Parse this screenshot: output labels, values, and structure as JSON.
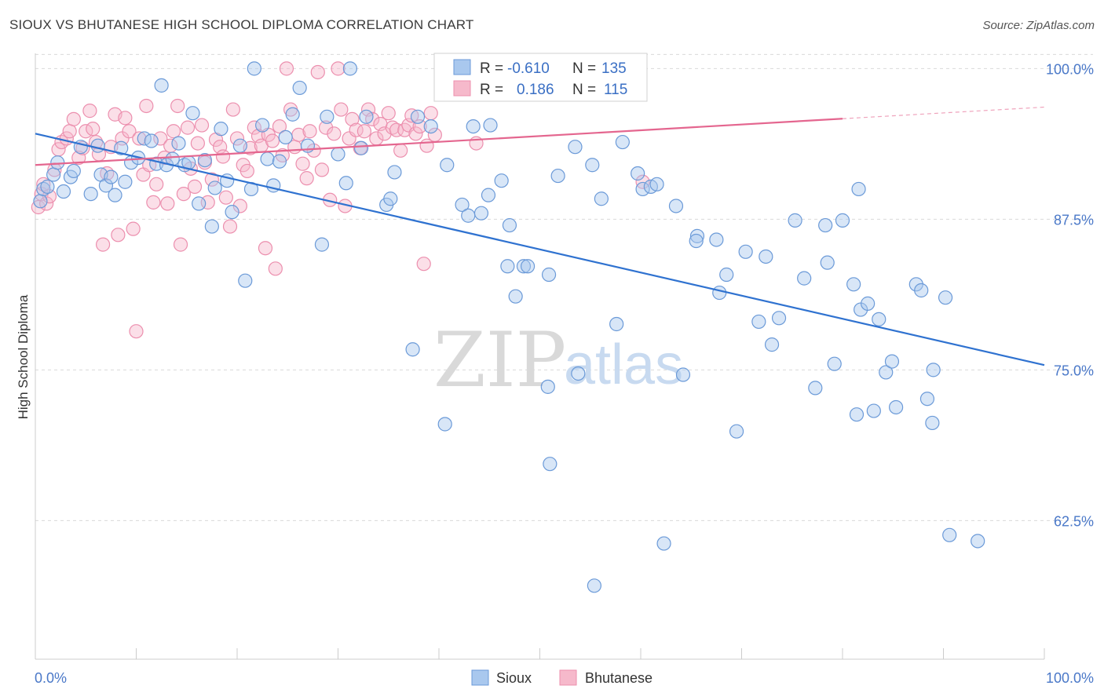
{
  "header": {
    "title": "SIOUX VS BHUTANESE HIGH SCHOOL DIPLOMA CORRELATION CHART",
    "source": "Source: ZipAtlas.com"
  },
  "watermark": {
    "zip": "ZIP",
    "atlas": "atlas"
  },
  "stats": {
    "sioux": {
      "r_label": "R =",
      "r_value": "-0.610",
      "n_label": "N =",
      "n_value": "135"
    },
    "bhutanese": {
      "r_label": "R =",
      "r_value": "0.186",
      "n_label": "N =",
      "n_value": "115"
    }
  },
  "colors": {
    "sioux_fill": "#a9c8ee",
    "sioux_stroke": "#6b9ad8",
    "sioux_line": "#2f72d0",
    "bhutanese_fill": "#f6b9cb",
    "bhutanese_stroke": "#ec8fae",
    "bhutanese_line": "#e4668f",
    "grid": "#d9d9d9",
    "axis_text": "#4a78c8"
  },
  "chart_data": {
    "type": "scatter",
    "title": "SIOUX VS BHUTANESE HIGH SCHOOL DIPLOMA CORRELATION CHART",
    "xlabel": "",
    "ylabel": "High School Diploma",
    "xlim": [
      0,
      100
    ],
    "ylim": [
      51.0,
      101.0
    ],
    "x_tick_labels": [
      "0.0%",
      "100.0%"
    ],
    "y_ticks": [
      62.5,
      75.0,
      87.5,
      100.0
    ],
    "y_tick_labels": [
      "62.5%",
      "75.0%",
      "87.5%",
      "100.0%"
    ],
    "grid": true,
    "legend_position": "bottom-center",
    "series": [
      {
        "name": "Sioux",
        "r": -0.61,
        "n": 135,
        "trend": {
          "x": [
            0,
            100
          ],
          "y": [
            94.6,
            75.4
          ]
        },
        "points": [
          [
            0.5,
            89.0
          ],
          [
            0.8,
            90.0
          ],
          [
            1.2,
            90.2
          ],
          [
            1.8,
            91.2
          ],
          [
            2.2,
            92.2
          ],
          [
            2.8,
            89.8
          ],
          [
            3.5,
            91.0
          ],
          [
            3.8,
            91.5
          ],
          [
            4.5,
            93.5
          ],
          [
            5.5,
            89.6
          ],
          [
            6.2,
            93.6
          ],
          [
            6.5,
            91.2
          ],
          [
            7.0,
            90.3
          ],
          [
            7.5,
            91.0
          ],
          [
            7.9,
            89.5
          ],
          [
            8.5,
            93.4
          ],
          [
            8.9,
            90.6
          ],
          [
            9.5,
            92.2
          ],
          [
            10.2,
            92.6
          ],
          [
            10.8,
            94.2
          ],
          [
            11.5,
            94.0
          ],
          [
            12.0,
            92.1
          ],
          [
            12.5,
            98.6
          ],
          [
            13.0,
            92.0
          ],
          [
            13.6,
            92.5
          ],
          [
            14.2,
            93.8
          ],
          [
            14.8,
            92.0
          ],
          [
            15.2,
            92.2
          ],
          [
            15.6,
            96.3
          ],
          [
            16.2,
            88.8
          ],
          [
            16.8,
            92.4
          ],
          [
            17.5,
            86.9
          ],
          [
            17.8,
            90.1
          ],
          [
            18.4,
            95.0
          ],
          [
            19.0,
            90.7
          ],
          [
            19.5,
            88.1
          ],
          [
            20.3,
            93.6
          ],
          [
            20.8,
            82.4
          ],
          [
            21.4,
            90.0
          ],
          [
            21.7,
            100.0
          ],
          [
            22.5,
            95.3
          ],
          [
            23.0,
            92.5
          ],
          [
            23.6,
            90.3
          ],
          [
            24.2,
            92.3
          ],
          [
            24.8,
            94.3
          ],
          [
            25.5,
            96.2
          ],
          [
            26.2,
            98.4
          ],
          [
            27.0,
            93.6
          ],
          [
            28.4,
            85.4
          ],
          [
            28.9,
            96.0
          ],
          [
            30.0,
            92.9
          ],
          [
            30.8,
            90.5
          ],
          [
            31.2,
            100.0
          ],
          [
            32.3,
            93.4
          ],
          [
            32.8,
            96.0
          ],
          [
            34.8,
            88.7
          ],
          [
            35.2,
            89.2
          ],
          [
            35.6,
            91.4
          ],
          [
            37.4,
            76.7
          ],
          [
            37.9,
            96.0
          ],
          [
            39.2,
            95.2
          ],
          [
            40.6,
            70.5
          ],
          [
            40.8,
            92.0
          ],
          [
            42.3,
            88.7
          ],
          [
            42.9,
            87.8
          ],
          [
            43.4,
            95.2
          ],
          [
            44.2,
            88.0
          ],
          [
            44.9,
            89.5
          ],
          [
            45.1,
            95.3
          ],
          [
            46.2,
            90.7
          ],
          [
            46.8,
            83.6
          ],
          [
            47.0,
            87.0
          ],
          [
            47.6,
            81.1
          ],
          [
            48.4,
            83.6
          ],
          [
            48.8,
            83.6
          ],
          [
            50.8,
            73.6
          ],
          [
            50.9,
            82.9
          ],
          [
            51.0,
            67.2
          ],
          [
            51.8,
            91.1
          ],
          [
            53.8,
            74.7
          ],
          [
            53.5,
            93.5
          ],
          [
            55.2,
            92.0
          ],
          [
            55.4,
            57.1
          ],
          [
            56.1,
            89.2
          ],
          [
            57.6,
            78.8
          ],
          [
            58.2,
            93.9
          ],
          [
            59.7,
            91.3
          ],
          [
            60.2,
            90.0
          ],
          [
            61.0,
            90.2
          ],
          [
            61.6,
            90.4
          ],
          [
            62.3,
            60.6
          ],
          [
            63.5,
            88.6
          ],
          [
            64.2,
            74.6
          ],
          [
            65.6,
            86.1
          ],
          [
            65.5,
            85.7
          ],
          [
            67.5,
            85.8
          ],
          [
            67.8,
            81.4
          ],
          [
            68.5,
            82.9
          ],
          [
            69.5,
            69.9
          ],
          [
            70.4,
            84.8
          ],
          [
            71.7,
            79.0
          ],
          [
            72.4,
            84.4
          ],
          [
            73.0,
            77.1
          ],
          [
            73.7,
            79.3
          ],
          [
            75.3,
            87.4
          ],
          [
            76.2,
            82.6
          ],
          [
            77.3,
            73.5
          ],
          [
            78.3,
            87.0
          ],
          [
            78.5,
            83.9
          ],
          [
            79.2,
            75.5
          ],
          [
            80.0,
            87.4
          ],
          [
            81.1,
            82.1
          ],
          [
            81.4,
            71.3
          ],
          [
            81.6,
            90.0
          ],
          [
            81.8,
            80.0
          ],
          [
            82.5,
            80.5
          ],
          [
            83.1,
            71.6
          ],
          [
            83.6,
            79.2
          ],
          [
            84.3,
            74.8
          ],
          [
            84.9,
            75.7
          ],
          [
            85.3,
            71.9
          ],
          [
            87.3,
            82.1
          ],
          [
            87.8,
            81.6
          ],
          [
            88.4,
            72.6
          ],
          [
            88.9,
            70.6
          ],
          [
            89.0,
            75.0
          ],
          [
            90.2,
            81.0
          ],
          [
            90.6,
            61.3
          ],
          [
            93.4,
            60.8
          ]
        ]
      },
      {
        "name": "Bhutanese",
        "r": 0.186,
        "n": 115,
        "trend": {
          "x": [
            0,
            100
          ],
          "y": [
            92.0,
            96.8
          ]
        },
        "points": [
          [
            0.3,
            88.5
          ],
          [
            0.6,
            89.6
          ],
          [
            0.8,
            90.4
          ],
          [
            1.1,
            88.8
          ],
          [
            1.4,
            89.4
          ],
          [
            1.9,
            91.6
          ],
          [
            2.3,
            93.3
          ],
          [
            2.6,
            93.9
          ],
          [
            3.1,
            94.2
          ],
          [
            3.4,
            94.8
          ],
          [
            3.8,
            95.8
          ],
          [
            4.3,
            92.6
          ],
          [
            4.7,
            93.4
          ],
          [
            5.0,
            94.8
          ],
          [
            5.4,
            96.5
          ],
          [
            5.7,
            95.0
          ],
          [
            6.0,
            93.9
          ],
          [
            6.3,
            92.9
          ],
          [
            6.7,
            85.4
          ],
          [
            7.1,
            91.3
          ],
          [
            7.5,
            93.5
          ],
          [
            7.9,
            96.2
          ],
          [
            8.2,
            86.2
          ],
          [
            8.6,
            94.2
          ],
          [
            8.9,
            95.9
          ],
          [
            9.3,
            94.8
          ],
          [
            9.7,
            86.7
          ],
          [
            10.0,
            78.2
          ],
          [
            10.3,
            94.2
          ],
          [
            10.7,
            91.2
          ],
          [
            11.0,
            96.9
          ],
          [
            11.3,
            92.0
          ],
          [
            11.7,
            88.9
          ],
          [
            12.0,
            90.4
          ],
          [
            12.4,
            94.2
          ],
          [
            12.8,
            92.6
          ],
          [
            13.1,
            88.8
          ],
          [
            13.4,
            93.6
          ],
          [
            13.7,
            94.8
          ],
          [
            14.1,
            96.9
          ],
          [
            14.4,
            85.4
          ],
          [
            14.7,
            89.6
          ],
          [
            15.1,
            95.1
          ],
          [
            15.4,
            91.7
          ],
          [
            15.8,
            90.2
          ],
          [
            16.1,
            93.8
          ],
          [
            16.5,
            95.3
          ],
          [
            16.8,
            92.2
          ],
          [
            17.1,
            88.9
          ],
          [
            17.5,
            90.8
          ],
          [
            17.9,
            94.1
          ],
          [
            18.3,
            93.5
          ],
          [
            18.6,
            92.7
          ],
          [
            18.9,
            89.3
          ],
          [
            19.3,
            86.9
          ],
          [
            19.6,
            96.6
          ],
          [
            20.0,
            94.2
          ],
          [
            20.3,
            88.6
          ],
          [
            20.6,
            92.0
          ],
          [
            21.0,
            91.5
          ],
          [
            21.3,
            93.4
          ],
          [
            21.7,
            95.1
          ],
          [
            22.1,
            94.4
          ],
          [
            22.4,
            93.6
          ],
          [
            22.8,
            85.1
          ],
          [
            23.1,
            94.5
          ],
          [
            23.5,
            94.0
          ],
          [
            23.8,
            83.4
          ],
          [
            24.2,
            95.2
          ],
          [
            24.5,
            92.8
          ],
          [
            24.9,
            100.0
          ],
          [
            25.3,
            96.6
          ],
          [
            25.7,
            93.5
          ],
          [
            26.1,
            94.5
          ],
          [
            26.5,
            92.1
          ],
          [
            26.9,
            90.9
          ],
          [
            27.2,
            94.8
          ],
          [
            27.6,
            93.2
          ],
          [
            28.0,
            99.7
          ],
          [
            28.4,
            91.6
          ],
          [
            28.8,
            95.1
          ],
          [
            29.2,
            89.1
          ],
          [
            29.6,
            94.6
          ],
          [
            30.0,
            100.0
          ],
          [
            30.3,
            96.6
          ],
          [
            30.7,
            88.6
          ],
          [
            31.1,
            94.2
          ],
          [
            31.4,
            95.8
          ],
          [
            31.8,
            94.9
          ],
          [
            32.2,
            93.4
          ],
          [
            32.6,
            94.8
          ],
          [
            33.0,
            96.6
          ],
          [
            33.4,
            95.8
          ],
          [
            33.8,
            94.2
          ],
          [
            34.2,
            95.4
          ],
          [
            34.6,
            94.6
          ],
          [
            35.0,
            96.3
          ],
          [
            35.4,
            95.1
          ],
          [
            35.8,
            94.9
          ],
          [
            36.2,
            93.2
          ],
          [
            36.6,
            94.9
          ],
          [
            37.0,
            95.3
          ],
          [
            37.3,
            96.1
          ],
          [
            37.7,
            94.6
          ],
          [
            38.1,
            95.2
          ],
          [
            38.5,
            83.8
          ],
          [
            38.8,
            93.6
          ],
          [
            39.2,
            96.3
          ],
          [
            39.6,
            94.5
          ],
          [
            43.7,
            93.8
          ],
          [
            60.2,
            90.6
          ]
        ]
      }
    ]
  },
  "legend": {
    "sioux_label": "Sioux",
    "bhutanese_label": "Bhutanese"
  }
}
